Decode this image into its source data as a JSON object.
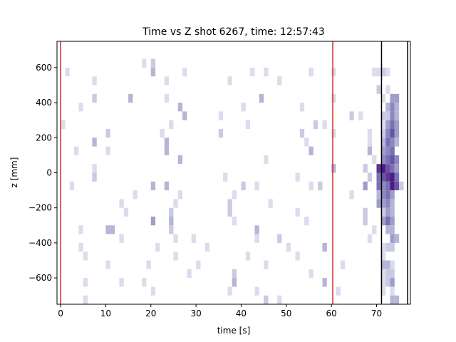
{
  "chart_data": {
    "type": "heatmap",
    "title": "Time vs Z shot 6267, time: 12:57:43",
    "xlabel": "time [s]",
    "ylabel": "z [mm]",
    "xlim": [
      -0.8,
      77.5
    ],
    "ylim": [
      -750,
      750
    ],
    "xticks": [
      0,
      10,
      20,
      30,
      40,
      50,
      60,
      70
    ],
    "yticks": [
      -600,
      -400,
      -200,
      0,
      200,
      400,
      600
    ],
    "bin_width_s": 1.0,
    "bin_height_mm": 50,
    "colormap": "Purples",
    "vmax": 10,
    "grid": false,
    "vlines": [
      {
        "x": 0.0,
        "color": "#d62728"
      },
      {
        "x": 60.3,
        "color": "#d62728"
      },
      {
        "x": 71.1,
        "color": "#000000"
      },
      {
        "x": 76.9,
        "color": "#000000"
      }
    ],
    "cells": [
      [
        18,
        625,
        1
      ],
      [
        20,
        625,
        2
      ],
      [
        20,
        575,
        3
      ],
      [
        1,
        575,
        1
      ],
      [
        27,
        575,
        1
      ],
      [
        42,
        575,
        1
      ],
      [
        45,
        575,
        1
      ],
      [
        55,
        575,
        1
      ],
      [
        60,
        575,
        1
      ],
      [
        7,
        525,
        1
      ],
      [
        23,
        525,
        1
      ],
      [
        37,
        525,
        1
      ],
      [
        48,
        525,
        1
      ],
      [
        69,
        575,
        1
      ],
      [
        70,
        575,
        1
      ],
      [
        71,
        575,
        2
      ],
      [
        72,
        575,
        1
      ],
      [
        7,
        425,
        2
      ],
      [
        15,
        425,
        3
      ],
      [
        23,
        425,
        1
      ],
      [
        44,
        425,
        3
      ],
      [
        60,
        425,
        1
      ],
      [
        70,
        475,
        2
      ],
      [
        72,
        475,
        1
      ],
      [
        73,
        425,
        4
      ],
      [
        74,
        425,
        4
      ],
      [
        4,
        375,
        1
      ],
      [
        26,
        375,
        3
      ],
      [
        40,
        375,
        1
      ],
      [
        53,
        375,
        1
      ],
      [
        71,
        425,
        1
      ],
      [
        72,
        375,
        3
      ],
      [
        73,
        375,
        5
      ],
      [
        74,
        375,
        3
      ],
      [
        27,
        325,
        3
      ],
      [
        35,
        325,
        1
      ],
      [
        64,
        325,
        2
      ],
      [
        66,
        325,
        1
      ],
      [
        71,
        325,
        2
      ],
      [
        72,
        325,
        2
      ],
      [
        73,
        325,
        5
      ],
      [
        74,
        325,
        3
      ],
      [
        0,
        275,
        1
      ],
      [
        24,
        275,
        1
      ],
      [
        41,
        275,
        1
      ],
      [
        56,
        275,
        2
      ],
      [
        58,
        275,
        1
      ],
      [
        71,
        275,
        1
      ],
      [
        72,
        275,
        4
      ],
      [
        73,
        275,
        6
      ],
      [
        74,
        275,
        4
      ],
      [
        10,
        225,
        2
      ],
      [
        22,
        225,
        1
      ],
      [
        35,
        225,
        2
      ],
      [
        53,
        225,
        2
      ],
      [
        60,
        225,
        1
      ],
      [
        68,
        225,
        1
      ],
      [
        71,
        225,
        2
      ],
      [
        72,
        225,
        5
      ],
      [
        73,
        225,
        7
      ],
      [
        74,
        225,
        4
      ],
      [
        7,
        175,
        3
      ],
      [
        23,
        175,
        3
      ],
      [
        54,
        175,
        1
      ],
      [
        68,
        175,
        1
      ],
      [
        71,
        175,
        3
      ],
      [
        72,
        175,
        6
      ],
      [
        73,
        175,
        5
      ],
      [
        74,
        175,
        3
      ],
      [
        3,
        125,
        1
      ],
      [
        10,
        125,
        1
      ],
      [
        23,
        125,
        3
      ],
      [
        55,
        125,
        3
      ],
      [
        68,
        125,
        3
      ],
      [
        71,
        125,
        4
      ],
      [
        72,
        125,
        5
      ],
      [
        73,
        125,
        6
      ],
      [
        26,
        75,
        3
      ],
      [
        45,
        75,
        1
      ],
      [
        69,
        75,
        1
      ],
      [
        71,
        75,
        5
      ],
      [
        72,
        75,
        6
      ],
      [
        73,
        75,
        7
      ],
      [
        74,
        75,
        5
      ],
      [
        7,
        25,
        1
      ],
      [
        60,
        25,
        3
      ],
      [
        67,
        25,
        2
      ],
      [
        70,
        25,
        8
      ],
      [
        71,
        25,
        9
      ],
      [
        72,
        25,
        7
      ],
      [
        73,
        25,
        6
      ],
      [
        74,
        25,
        4
      ],
      [
        7,
        -25,
        2
      ],
      [
        36,
        -25,
        1
      ],
      [
        52,
        -25,
        1
      ],
      [
        68,
        -25,
        2
      ],
      [
        70,
        -25,
        6
      ],
      [
        71,
        -25,
        7
      ],
      [
        72,
        -25,
        8
      ],
      [
        73,
        -25,
        9
      ],
      [
        74,
        -25,
        6
      ],
      [
        2,
        -75,
        1
      ],
      [
        20,
        -75,
        3
      ],
      [
        23,
        -75,
        3
      ],
      [
        40,
        -75,
        2
      ],
      [
        43,
        -75,
        1
      ],
      [
        55,
        -75,
        1
      ],
      [
        57,
        -75,
        2
      ],
      [
        67,
        -75,
        4
      ],
      [
        70,
        -75,
        6
      ],
      [
        71,
        -75,
        5
      ],
      [
        72,
        -75,
        6
      ],
      [
        73,
        -75,
        9
      ],
      [
        74,
        -75,
        7
      ],
      [
        75,
        -75,
        2
      ],
      [
        16,
        -125,
        1
      ],
      [
        26,
        -125,
        1
      ],
      [
        38,
        -125,
        1
      ],
      [
        64,
        -125,
        1
      ],
      [
        70,
        -125,
        3
      ],
      [
        71,
        -125,
        5
      ],
      [
        72,
        -125,
        6
      ],
      [
        73,
        -125,
        4
      ],
      [
        13,
        -175,
        1
      ],
      [
        25,
        -175,
        1
      ],
      [
        37,
        -175,
        2
      ],
      [
        46,
        -175,
        1
      ],
      [
        70,
        -175,
        4
      ],
      [
        71,
        -175,
        4
      ],
      [
        72,
        -175,
        5
      ],
      [
        73,
        -175,
        3
      ],
      [
        14,
        -225,
        1
      ],
      [
        24,
        -225,
        2
      ],
      [
        37,
        -225,
        2
      ],
      [
        52,
        -225,
        1
      ],
      [
        67,
        -225,
        2
      ],
      [
        71,
        -225,
        2
      ],
      [
        72,
        -225,
        4
      ],
      [
        73,
        -225,
        3
      ],
      [
        20,
        -275,
        4
      ],
      [
        24,
        -275,
        3
      ],
      [
        38,
        -275,
        1
      ],
      [
        54,
        -275,
        1
      ],
      [
        67,
        -275,
        2
      ],
      [
        71,
        -275,
        4
      ],
      [
        72,
        -275,
        6
      ],
      [
        73,
        -275,
        4
      ],
      [
        4,
        -325,
        1
      ],
      [
        10,
        -325,
        3
      ],
      [
        11,
        -325,
        3
      ],
      [
        24,
        -325,
        2
      ],
      [
        43,
        -325,
        3
      ],
      [
        69,
        -325,
        1
      ],
      [
        72,
        -325,
        3
      ],
      [
        73,
        -325,
        3
      ],
      [
        13,
        -375,
        1
      ],
      [
        25,
        -375,
        1
      ],
      [
        29,
        -375,
        1
      ],
      [
        43,
        -375,
        1
      ],
      [
        48,
        -375,
        2
      ],
      [
        68,
        -375,
        1
      ],
      [
        73,
        -375,
        4
      ],
      [
        74,
        -375,
        3
      ],
      [
        4,
        -425,
        1
      ],
      [
        21,
        -425,
        1
      ],
      [
        32,
        -425,
        1
      ],
      [
        50,
        -425,
        1
      ],
      [
        58,
        -425,
        3
      ],
      [
        71,
        -425,
        1
      ],
      [
        72,
        -425,
        2
      ],
      [
        73,
        -425,
        2
      ],
      [
        5,
        -475,
        1
      ],
      [
        25,
        -475,
        1
      ],
      [
        41,
        -475,
        1
      ],
      [
        52,
        -475,
        1
      ],
      [
        71,
        -475,
        1
      ],
      [
        10,
        -525,
        1
      ],
      [
        19,
        -525,
        1
      ],
      [
        30,
        -525,
        1
      ],
      [
        45,
        -525,
        1
      ],
      [
        62,
        -525,
        1
      ],
      [
        71,
        -525,
        3
      ],
      [
        72,
        -525,
        3
      ],
      [
        73,
        -525,
        1
      ],
      [
        28,
        -575,
        1
      ],
      [
        38,
        -575,
        2
      ],
      [
        55,
        -575,
        1
      ],
      [
        71,
        -575,
        1
      ],
      [
        72,
        -575,
        2
      ],
      [
        73,
        -575,
        2
      ],
      [
        5,
        -625,
        1
      ],
      [
        13,
        -625,
        1
      ],
      [
        18,
        -625,
        1
      ],
      [
        38,
        -625,
        3
      ],
      [
        58,
        -625,
        3
      ],
      [
        71,
        -625,
        1
      ],
      [
        72,
        -625,
        2
      ],
      [
        73,
        -625,
        4
      ],
      [
        20,
        -675,
        1
      ],
      [
        37,
        -675,
        1
      ],
      [
        43,
        -675,
        1
      ],
      [
        61,
        -675,
        1
      ],
      [
        71,
        -675,
        1
      ],
      [
        73,
        -675,
        1
      ],
      [
        5,
        -725,
        1
      ],
      [
        45,
        -725,
        2
      ],
      [
        48,
        -725,
        1
      ],
      [
        73,
        -725,
        3
      ],
      [
        74,
        -725,
        3
      ]
    ]
  }
}
